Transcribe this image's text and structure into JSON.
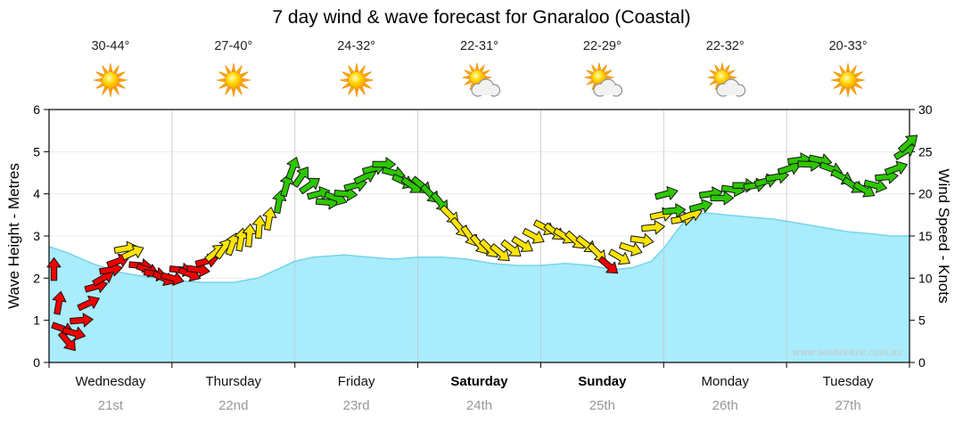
{
  "title": "7 day wind & wave forecast for Gnaraloo (Coastal)",
  "watermark": "www.seabreeze.com.au",
  "left_axis": {
    "label": "Wave Height - Metres",
    "min": 0,
    "max": 6,
    "ticks": [
      0,
      1,
      2,
      3,
      4,
      5,
      6
    ]
  },
  "right_axis": {
    "label": "Wind Speed - Knots",
    "min": 0,
    "max": 30,
    "ticks": [
      0,
      5,
      10,
      15,
      20,
      25,
      30
    ]
  },
  "days": [
    {
      "name": "Wednesday",
      "date": "21st",
      "temp": "30-44°",
      "icon": "sun",
      "weekend": false
    },
    {
      "name": "Thursday",
      "date": "22nd",
      "temp": "27-40°",
      "icon": "sun",
      "weekend": false
    },
    {
      "name": "Friday",
      "date": "23rd",
      "temp": "24-32°",
      "icon": "sun",
      "weekend": false
    },
    {
      "name": "Saturday",
      "date": "24th",
      "temp": "22-31°",
      "icon": "sun-cloud",
      "weekend": true
    },
    {
      "name": "Sunday",
      "date": "25th",
      "temp": "22-29°",
      "icon": "sun-cloud",
      "weekend": true
    },
    {
      "name": "Monday",
      "date": "26th",
      "temp": "22-32°",
      "icon": "sun-cloud",
      "weekend": false
    },
    {
      "name": "Tuesday",
      "date": "27th",
      "temp": "20-33°",
      "icon": "sun",
      "weekend": false
    }
  ],
  "colors": {
    "wave_fill": "#a9ecfb",
    "wave_edge": "#74d4ea",
    "wind_low": "#f00000",
    "wind_mid": "#ffe400",
    "wind_high": "#2ec600",
    "grid": "#c4c4c4",
    "h_grid": "#ececec",
    "frame": "#000000"
  },
  "chart_data": {
    "type": "area",
    "title": "7 day wind & wave forecast for Gnaraloo (Coastal)",
    "categories": [
      "Wednesday 21st",
      "Thursday 22nd",
      "Friday 23rd",
      "Saturday 24th",
      "Sunday 25th",
      "Monday 26th",
      "Tuesday 27th"
    ],
    "x_unit": "time in days, 0 to 7",
    "ylabel_left": "Wave Height - Metres",
    "ylabel_right": "Wind Speed - Knots",
    "ylim_wave_m": [
      0,
      6
    ],
    "ylim_wind_kn": [
      0,
      30
    ],
    "grid": "vertical lines at each day boundary",
    "temperatures_c": [
      "30-44",
      "27-40",
      "24-32",
      "22-31",
      "22-29",
      "22-32",
      "20-33"
    ],
    "sky_icons": [
      "sun",
      "sun",
      "sun",
      "sun-cloud",
      "sun-cloud",
      "sun-cloud",
      "sun"
    ],
    "wave_height_m": {
      "name": "Wave Height (m), cyan filled area",
      "points": [
        [
          0,
          2.75
        ],
        [
          0.15,
          2.6
        ],
        [
          0.35,
          2.35
        ],
        [
          0.55,
          2.15
        ],
        [
          0.75,
          2.05
        ],
        [
          1,
          1.95
        ],
        [
          1.25,
          1.9
        ],
        [
          1.5,
          1.9
        ],
        [
          1.7,
          2.0
        ],
        [
          1.85,
          2.2
        ],
        [
          2,
          2.4
        ],
        [
          2.15,
          2.5
        ],
        [
          2.4,
          2.55
        ],
        [
          2.6,
          2.5
        ],
        [
          2.8,
          2.45
        ],
        [
          3,
          2.5
        ],
        [
          3.2,
          2.5
        ],
        [
          3.4,
          2.45
        ],
        [
          3.6,
          2.35
        ],
        [
          3.8,
          2.3
        ],
        [
          4,
          2.3
        ],
        [
          4.2,
          2.35
        ],
        [
          4.4,
          2.3
        ],
        [
          4.6,
          2.2
        ],
        [
          4.75,
          2.25
        ],
        [
          4.9,
          2.4
        ],
        [
          5.0,
          2.7
        ],
        [
          5.1,
          3.1
        ],
        [
          5.2,
          3.45
        ],
        [
          5.35,
          3.55
        ],
        [
          5.5,
          3.5
        ],
        [
          5.7,
          3.45
        ],
        [
          5.9,
          3.4
        ],
        [
          6.1,
          3.3
        ],
        [
          6.3,
          3.2
        ],
        [
          6.5,
          3.1
        ],
        [
          6.7,
          3.05
        ],
        [
          6.85,
          3.0
        ],
        [
          7,
          3.0
        ]
      ]
    },
    "wind_speed_kn": {
      "name": "Wind Speed (knots), colored arrows",
      "arrow_format": "[t_days, knots, direction_deg (0=right, negative=up)]",
      "arrows": [
        [
          0.04,
          11,
          -90
        ],
        [
          0.08,
          7,
          -80
        ],
        [
          0.11,
          4,
          20
        ],
        [
          0.15,
          2.5,
          50
        ],
        [
          0.2,
          3.5,
          15
        ],
        [
          0.26,
          5,
          -5
        ],
        [
          0.32,
          7,
          -25
        ],
        [
          0.38,
          9,
          -15
        ],
        [
          0.44,
          10,
          -30
        ],
        [
          0.5,
          11,
          -10
        ],
        [
          0.56,
          12,
          -20
        ],
        [
          0.62,
          13.5,
          -10
        ],
        [
          0.68,
          13,
          -25
        ],
        [
          0.74,
          11.5,
          5
        ],
        [
          0.8,
          11,
          20
        ],
        [
          0.86,
          10.5,
          10
        ],
        [
          0.93,
          10,
          25
        ],
        [
          1.0,
          10,
          15
        ],
        [
          1.07,
          11,
          5
        ],
        [
          1.14,
          10.5,
          22
        ],
        [
          1.21,
          11,
          8
        ],
        [
          1.28,
          12,
          -15
        ],
        [
          1.35,
          13,
          -40
        ],
        [
          1.42,
          13.5,
          -55
        ],
        [
          1.49,
          14,
          -70
        ],
        [
          1.56,
          14.5,
          -80
        ],
        [
          1.63,
          15,
          -85
        ],
        [
          1.71,
          16,
          -85
        ],
        [
          1.79,
          17,
          -80
        ],
        [
          1.87,
          19,
          -80
        ],
        [
          1.93,
          21,
          -75
        ],
        [
          1.98,
          23,
          -70
        ],
        [
          2.05,
          22,
          -55
        ],
        [
          2.12,
          21,
          -35
        ],
        [
          2.19,
          20,
          -15
        ],
        [
          2.26,
          19,
          5
        ],
        [
          2.33,
          19.5,
          20
        ],
        [
          2.41,
          20,
          5
        ],
        [
          2.49,
          21,
          -15
        ],
        [
          2.57,
          22,
          -25
        ],
        [
          2.64,
          23,
          -15
        ],
        [
          2.72,
          23.5,
          0
        ],
        [
          2.8,
          22.5,
          15
        ],
        [
          2.88,
          21.5,
          25
        ],
        [
          2.95,
          21,
          35
        ],
        [
          3.03,
          21,
          40
        ],
        [
          3.1,
          20,
          45
        ],
        [
          3.18,
          19,
          50
        ],
        [
          3.26,
          17.5,
          45
        ],
        [
          3.34,
          16,
          50
        ],
        [
          3.42,
          15,
          55
        ],
        [
          3.5,
          14,
          50
        ],
        [
          3.58,
          13.5,
          45
        ],
        [
          3.67,
          13,
          40
        ],
        [
          3.76,
          13.5,
          38
        ],
        [
          3.85,
          14,
          32
        ],
        [
          3.94,
          15,
          28
        ],
        [
          4.03,
          16,
          28
        ],
        [
          4.11,
          15.5,
          38
        ],
        [
          4.19,
          15,
          32
        ],
        [
          4.28,
          14.5,
          42
        ],
        [
          4.37,
          14,
          38
        ],
        [
          4.46,
          13,
          45
        ],
        [
          4.55,
          11.5,
          40
        ],
        [
          4.64,
          12.5,
          30
        ],
        [
          4.73,
          13.5,
          18
        ],
        [
          4.82,
          14.5,
          8
        ],
        [
          4.91,
          16,
          -5
        ],
        [
          4.98,
          17.5,
          -12
        ],
        [
          5.02,
          20,
          -15
        ],
        [
          5.08,
          18,
          -5
        ],
        [
          5.15,
          17,
          -10
        ],
        [
          5.22,
          17.5,
          -20
        ],
        [
          5.3,
          18.5,
          -15
        ],
        [
          5.38,
          20,
          -8
        ],
        [
          5.47,
          19.5,
          0
        ],
        [
          5.56,
          20.5,
          8
        ],
        [
          5.65,
          21,
          0
        ],
        [
          5.74,
          21,
          -10
        ],
        [
          5.83,
          21.5,
          -15
        ],
        [
          5.92,
          22,
          -10
        ],
        [
          6.02,
          23,
          -18
        ],
        [
          6.1,
          24,
          -8
        ],
        [
          6.18,
          23.5,
          2
        ],
        [
          6.27,
          24,
          12
        ],
        [
          6.36,
          23,
          20
        ],
        [
          6.45,
          22,
          28
        ],
        [
          6.54,
          21,
          34
        ],
        [
          6.63,
          20.5,
          30
        ],
        [
          6.72,
          21,
          14
        ],
        [
          6.81,
          22,
          -6
        ],
        [
          6.89,
          23,
          -20
        ],
        [
          6.96,
          25,
          -32
        ],
        [
          6.99,
          26,
          -42
        ]
      ],
      "speed_color_thresholds_kn": {
        "red_below": 12.5,
        "yellow_below": 18,
        "green_at_or_above": 18
      }
    }
  }
}
